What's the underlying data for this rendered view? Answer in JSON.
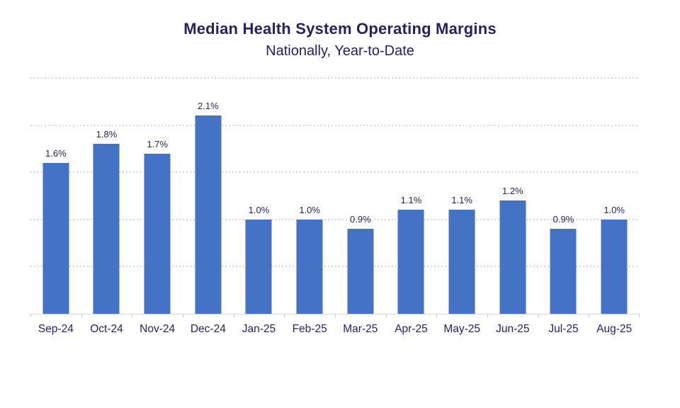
{
  "header": {
    "title": "Median Health System Operating Margins",
    "subtitle": "Nationally, Year-to-Date"
  },
  "colors": {
    "bar_fill": "#4472c4",
    "text_navy": "#262262",
    "gridline_gray": "#d9d9d9",
    "axis_gray": "#d9d9d9"
  },
  "chart_data": {
    "type": "bar",
    "title": "Median Health System Operating Margins",
    "subtitle": "Nationally, Year-to-Date",
    "categories": [
      "Sep-24",
      "Oct-24",
      "Nov-24",
      "Dec-24",
      "Jan-25",
      "Feb-25",
      "Mar-25",
      "Apr-25",
      "May-25",
      "Jun-25",
      "Jul-25",
      "Aug-25"
    ],
    "values": [
      1.6,
      1.8,
      1.7,
      2.1,
      1.0,
      1.0,
      0.9,
      1.1,
      1.1,
      1.2,
      0.9,
      1.0
    ],
    "value_labels": [
      "1.6%",
      "1.8%",
      "1.7%",
      "2.1%",
      "1.0%",
      "1.0%",
      "0.9%",
      "1.1%",
      "1.1%",
      "1.2%",
      "0.9%",
      "1.0%"
    ],
    "xlabel": "",
    "ylabel": "",
    "ylim": [
      0,
      2.5
    ],
    "gridline_values": [
      0.5,
      1.0,
      1.5,
      2.0,
      2.5
    ],
    "grid_style": "horizontal dotted",
    "y_axis_tick_labels_visible": false,
    "legend": "none"
  }
}
